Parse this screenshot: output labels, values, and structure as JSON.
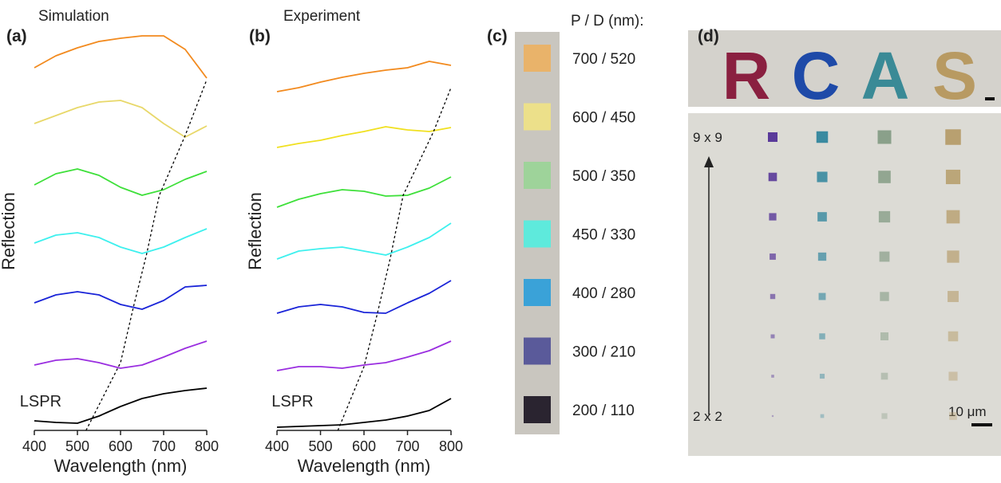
{
  "chart_data": [
    {
      "type": "line",
      "label": "(a)",
      "title": "Simulation",
      "xlabel": "Wavelength (nm)",
      "ylabel": "Reflection",
      "xlim": [
        400,
        800
      ],
      "xticks": [
        400,
        500,
        600,
        700,
        800
      ],
      "ylim": [
        0,
        10
      ],
      "x": [
        400,
        450,
        500,
        550,
        600,
        650,
        700,
        750,
        800
      ],
      "series": [
        {
          "color": "#f28a1e",
          "values": [
            9.1,
            9.4,
            9.6,
            9.76,
            9.84,
            9.9,
            9.9,
            9.56,
            8.84
          ]
        },
        {
          "color": "#e8d86a",
          "values": [
            7.7,
            7.9,
            8.1,
            8.24,
            8.28,
            8.1,
            7.7,
            7.36,
            7.64
          ]
        },
        {
          "color": "#3ee03a",
          "values": [
            6.16,
            6.44,
            6.56,
            6.4,
            6.1,
            5.9,
            6.04,
            6.3,
            6.5
          ]
        },
        {
          "color": "#3ef0ee",
          "values": [
            4.7,
            4.9,
            4.96,
            4.84,
            4.6,
            4.44,
            4.6,
            4.84,
            5.06
          ]
        },
        {
          "color": "#1a24d8",
          "values": [
            3.2,
            3.4,
            3.48,
            3.4,
            3.16,
            3.04,
            3.26,
            3.6,
            3.64
          ]
        },
        {
          "color": "#9a2ee0",
          "values": [
            1.64,
            1.76,
            1.8,
            1.7,
            1.56,
            1.64,
            1.84,
            2.06,
            2.24
          ]
        },
        {
          "color": "#000000",
          "values": [
            0.24,
            0.2,
            0.18,
            0.36,
            0.6,
            0.8,
            0.92,
            1.0,
            1.06
          ]
        },
        {
          "name": "LSPR",
          "color": "#000000",
          "dashed": true,
          "x": [
            520,
            600,
            630,
            660,
            690,
            750,
            800
          ],
          "values": [
            0,
            1.7,
            3.1,
            4.4,
            5.9,
            7.4,
            8.8
          ]
        }
      ]
    },
    {
      "type": "line",
      "label": "(b)",
      "title": "Experiment",
      "xlabel": "Wavelength (nm)",
      "ylabel": "Reflection",
      "xlim": [
        400,
        800
      ],
      "xticks": [
        400,
        500,
        600,
        700,
        800
      ],
      "ylim": [
        0,
        10
      ],
      "x": [
        400,
        450,
        500,
        550,
        600,
        650,
        700,
        750,
        800
      ],
      "series": [
        {
          "color": "#f28a1e",
          "values": [
            8.5,
            8.6,
            8.74,
            8.86,
            8.96,
            9.04,
            9.1,
            9.26,
            9.16
          ]
        },
        {
          "color": "#f0e020",
          "values": [
            7.1,
            7.2,
            7.28,
            7.4,
            7.5,
            7.62,
            7.54,
            7.5,
            7.6
          ]
        },
        {
          "color": "#3ee03a",
          "values": [
            5.6,
            5.8,
            5.94,
            6.04,
            6.0,
            5.88,
            5.9,
            6.08,
            6.36
          ]
        },
        {
          "color": "#3ef0ee",
          "values": [
            4.3,
            4.5,
            4.56,
            4.6,
            4.5,
            4.4,
            4.6,
            4.84,
            5.2
          ]
        },
        {
          "color": "#1a24d8",
          "values": [
            2.94,
            3.1,
            3.16,
            3.1,
            2.96,
            2.94,
            3.2,
            3.44,
            3.76
          ]
        },
        {
          "color": "#9a2ee0",
          "values": [
            1.5,
            1.6,
            1.6,
            1.56,
            1.64,
            1.7,
            1.84,
            2.0,
            2.24
          ]
        },
        {
          "color": "#000000",
          "values": [
            0.08,
            0.1,
            0.12,
            0.14,
            0.2,
            0.26,
            0.36,
            0.5,
            0.8
          ]
        },
        {
          "name": "LSPR",
          "color": "#000000",
          "dashed": true,
          "x": [
            540,
            600,
            630,
            660,
            690,
            760,
            800
          ],
          "values": [
            0,
            1.6,
            2.9,
            4.3,
            5.9,
            7.5,
            8.6
          ]
        }
      ]
    }
  ],
  "panel_c": {
    "label": "(c)",
    "header": "P / D (nm):",
    "items": [
      {
        "text": "700 / 520",
        "color": "#e9b36a"
      },
      {
        "text": "600 / 450",
        "color": "#ece08a"
      },
      {
        "text": "500 / 350",
        "color": "#9ed39a"
      },
      {
        "text": "450 / 330",
        "color": "#5eeadc"
      },
      {
        "text": "400 / 280",
        "color": "#3aa2d8"
      },
      {
        "text": "300 / 210",
        "color": "#5a5a9a"
      },
      {
        "text": "200 / 110",
        "color": "#2a2430"
      }
    ]
  },
  "panel_d": {
    "label": "(d)",
    "letters": [
      {
        "text": "R",
        "color": "#8a2040"
      },
      {
        "text": "C",
        "color": "#1e4aa8"
      },
      {
        "text": "A",
        "color": "#3a8a96"
      },
      {
        "text": "S",
        "color": "#b89a62"
      }
    ],
    "top_row": "9 x 9",
    "bottom_row": "2 x 2",
    "scale": "10 μm"
  }
}
